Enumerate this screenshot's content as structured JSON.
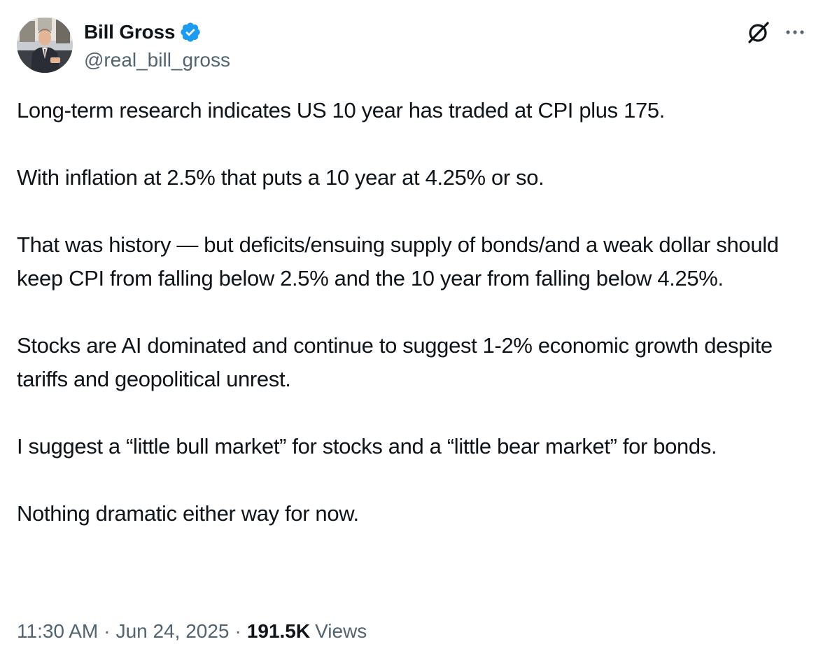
{
  "author": {
    "display_name": "Bill Gross",
    "handle": "@real_bill_gross",
    "verified": true
  },
  "icons": {
    "verified": "verified-badge-icon",
    "grok": "grok-icon",
    "more": "more-options-icon"
  },
  "colors": {
    "verified_blue": "#1d9bf0",
    "text_primary": "#0f1419",
    "text_secondary": "#536471"
  },
  "tweet": {
    "paragraphs": [
      "Long-term research indicates US 10 year has traded at CPI plus 175.",
      "With inflation at 2.5% that puts a 10 year at 4.25% or so.",
      "That was history — but deficits/ensuing supply of bonds/and a weak dollar should keep CPI from falling below 2.5% and the 10 year from falling below 4.25%.",
      "Stocks are AI dominated and continue to suggest 1-2% economic growth despite tariffs and geopolitical unrest.",
      "I suggest a “little bull market” for stocks and a “little bear market” for bonds.",
      "Nothing dramatic either way for now."
    ]
  },
  "meta": {
    "time": "11:30 AM",
    "separator": "·",
    "date": "Jun 24, 2025",
    "views_count": "191.5K",
    "views_label": "Views"
  }
}
